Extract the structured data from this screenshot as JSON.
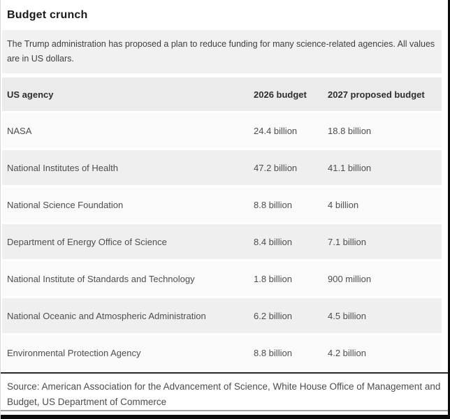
{
  "chart_data": {
    "type": "table",
    "title": "Budget crunch",
    "subtitle": "The Trump administration has proposed a plan to reduce funding for many science-related agencies. All values are in US dollars.",
    "columns": [
      "US agency",
      "2026 budget",
      "2027 proposed budget"
    ],
    "rows": [
      [
        "NASA",
        "24.4 billion",
        "18.8 billion"
      ],
      [
        "National Institutes of Health",
        "47.2 billion",
        "41.1 billion"
      ],
      [
        "National Science Foundation",
        "8.8 billion",
        "4 billion"
      ],
      [
        "Department of Energy Office of Science",
        "8.4 billion",
        "7.1 billion"
      ],
      [
        "National Institute of Standards and Technology",
        "1.8 billion",
        "900 million"
      ],
      [
        "National Oceanic and Atmospheric Administration",
        "6.2 billion",
        "4.5 billion"
      ],
      [
        "Environmental Protection Agency",
        "8.8 billion",
        "4.2 billion"
      ]
    ],
    "values_numeric_billions": [
      [
        24.4,
        18.8
      ],
      [
        47.2,
        41.1
      ],
      [
        8.8,
        4.0
      ],
      [
        8.4,
        7.1
      ],
      [
        1.8,
        0.9
      ],
      [
        6.2,
        4.5
      ],
      [
        8.8,
        4.2
      ]
    ],
    "units": "US dollars",
    "source": "Source: American Association for the Advancement of Science, White House Office of Management and Budget, US Department of Commerce",
    "layout": {
      "legend": "none",
      "grid": "zebra-striped rows"
    }
  },
  "colors": {
    "intro_bg": "#f1f1f1",
    "header_row_bg": "#ebebeb",
    "row_gray_bg": "#efefef",
    "row_light_bg": "#fafafa",
    "table_bottom_border": "#2b2b2b",
    "frame_border": "#0a0a0a",
    "title_text": "#1a1a1a",
    "body_text": "#4e4e4e"
  }
}
